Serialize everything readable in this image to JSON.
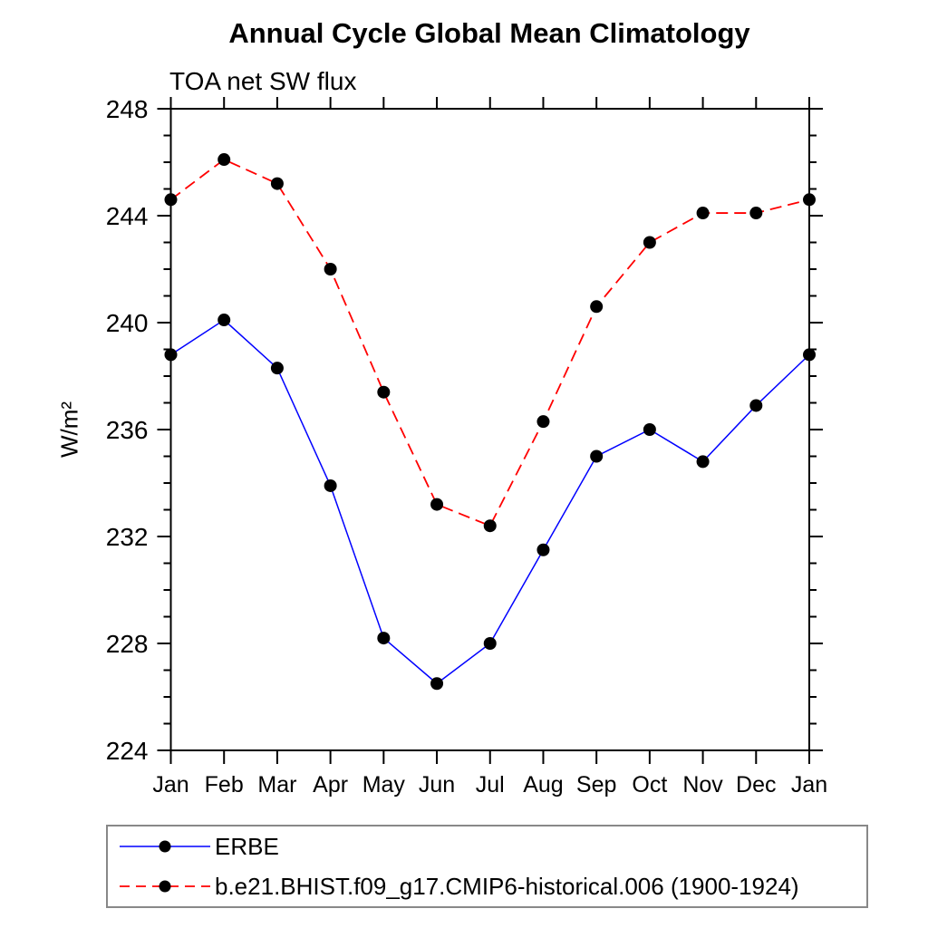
{
  "title": "Annual Cycle Global Mean Climatology",
  "subtitle": "TOA net SW flux",
  "ylabel": "W/m²",
  "colors": {
    "erbe_line": "#0000ff",
    "model_line": "#ff0000",
    "marker": "#000000",
    "axis": "#000000",
    "legend_border": "#888888"
  },
  "chart_data": {
    "type": "line",
    "title": "Annual Cycle Global Mean Climatology",
    "subtitle": "TOA net SW flux",
    "xlabel": "",
    "ylabel": "W/m²",
    "categories": [
      "Jan",
      "Feb",
      "Mar",
      "Apr",
      "May",
      "Jun",
      "Jul",
      "Aug",
      "Sep",
      "Oct",
      "Nov",
      "Dec",
      "Jan"
    ],
    "series": [
      {
        "name": "ERBE",
        "color": "#0000ff",
        "style": "solid",
        "marker": "circle",
        "marker_color": "#000000",
        "values": [
          238.8,
          240.1,
          238.3,
          233.9,
          228.2,
          226.5,
          228.0,
          231.5,
          235.0,
          236.0,
          234.8,
          236.9,
          238.8
        ]
      },
      {
        "name": "b.e21.BHIST.f09_g17.CMIP6-historical.006 (1900-1924)",
        "color": "#ff0000",
        "style": "dashed",
        "marker": "circle",
        "marker_color": "#000000",
        "values": [
          244.6,
          246.1,
          245.2,
          242.0,
          237.4,
          233.2,
          232.4,
          236.3,
          240.6,
          243.0,
          244.1,
          244.1,
          244.6
        ]
      }
    ],
    "ylim": [
      224,
      248
    ],
    "yticks_major": [
      224,
      228,
      232,
      236,
      240,
      244,
      248
    ],
    "ytick_minor_step": 1,
    "grid": false,
    "legend_position": "bottom"
  }
}
